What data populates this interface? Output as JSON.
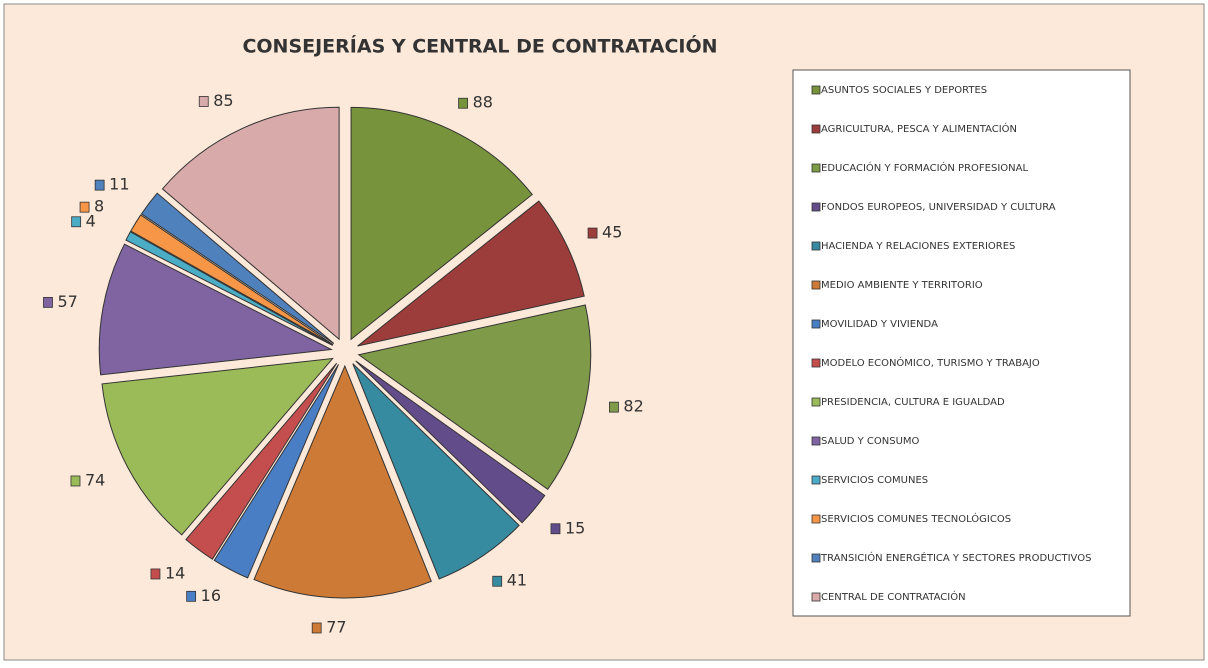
{
  "chart_data": {
    "type": "pie",
    "title": "CONSEJERÍAS Y CENTRAL DE CONTRATACIÓN",
    "categories": [
      "ASUNTOS SOCIALES  Y DEPORTES",
      "AGRICULTURA,  PESCA Y ALIMENTACIÓN",
      "EDUCACIÓN  Y FORMACIÓN  PROFESIONAL",
      "FONDOS EUROPEOS,  UNIVERSIDAD  Y CULTURA",
      "HACIENDA  Y RELACIONES  EXTERIORES",
      "MEDIO AMBIENTE  Y TERRITORIO",
      "MOVILIDAD  Y VIVIENDA",
      "MODELO ECONÓMICO,   TURISMO  Y TRABAJO",
      "PRESIDENCIA,  CULTURA E IGUALDAD",
      "SALUD Y CONSUMO",
      "SERVICIOS  COMUNES",
      "SERVICIOS  COMUNES  TECNOLÓGICOS",
      "TRANSICIÓN  ENERGÉTICA  Y SECTORES PRODUCTIVOS",
      "CENTRAL DE CONTRATACIÓN"
    ],
    "values": [
      88,
      45,
      82,
      15,
      41,
      77,
      16,
      14,
      74,
      57,
      4,
      8,
      11,
      85
    ],
    "colors": [
      "#77933c",
      "#9c3d3b",
      "#7f9a48",
      "#634c8a",
      "#378ba0",
      "#cc7a36",
      "#4a7ec4",
      "#c44e4e",
      "#9bbb59",
      "#8064a2",
      "#4bacc6",
      "#f79646",
      "#4f81bd",
      "#d9aaaa"
    ],
    "legend": "right"
  }
}
